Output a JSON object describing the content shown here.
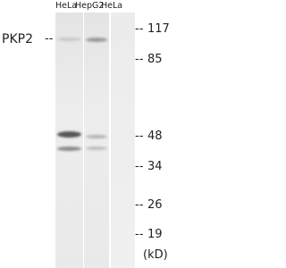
{
  "lanes": [
    "HeLa",
    "HepG2",
    "HeLa"
  ],
  "protein": {
    "label": "PKP2"
  },
  "markers": {
    "values": [
      117,
      85,
      48,
      34,
      26,
      19
    ],
    "unit": "(kD)"
  }
}
